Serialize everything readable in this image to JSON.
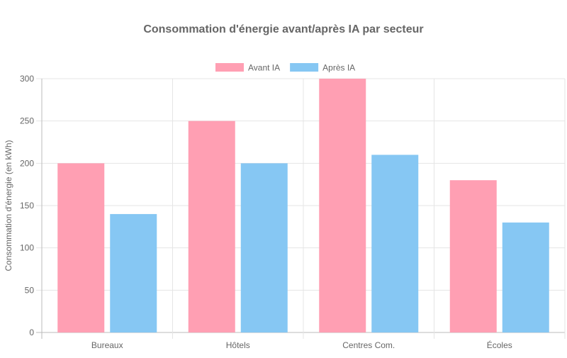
{
  "chart_data": {
    "type": "bar",
    "title": "Consommation d'énergie avant/après IA par secteur",
    "xlabel": "",
    "ylabel": "Consommation d'énergie (en kWh)",
    "categories": [
      "Bureaux",
      "Hôtels",
      "Centres Com.",
      "Écoles"
    ],
    "series": [
      {
        "name": "Avant IA",
        "values": [
          200,
          250,
          300,
          180
        ],
        "color": "#ff9fb3"
      },
      {
        "name": "Après IA",
        "values": [
          140,
          200,
          210,
          130
        ],
        "color": "#86c7f3"
      }
    ],
    "ylim": [
      0,
      300
    ],
    "yticks": [
      0,
      50,
      100,
      150,
      200,
      250,
      300
    ],
    "grid": true,
    "legend_position": "top"
  }
}
